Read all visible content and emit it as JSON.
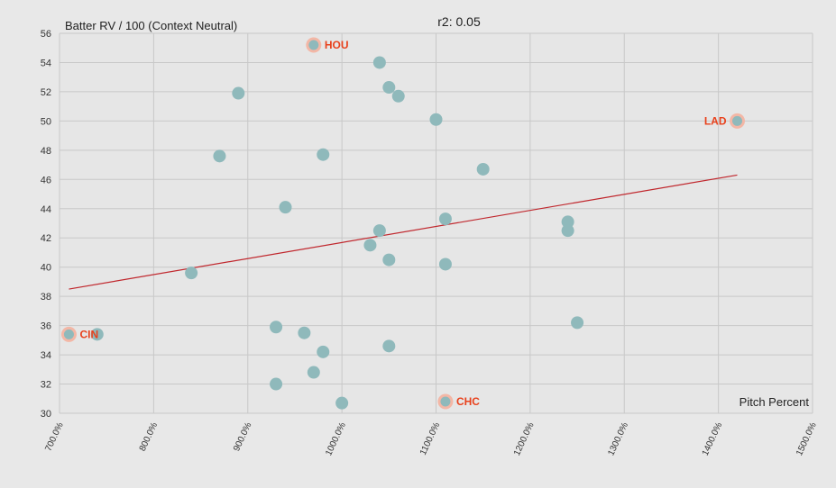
{
  "chart_data": {
    "type": "scatter",
    "title": "r2: 0.05",
    "ylabel": "Batter RV / 100 (Context Neutral)",
    "xlabel": "Pitch Percent",
    "xlim": [
      700,
      1500
    ],
    "ylim": [
      30,
      56
    ],
    "x_ticks": [
      700,
      800,
      900,
      1000,
      1100,
      1200,
      1300,
      1400,
      1500
    ],
    "x_tick_labels": [
      "700.0%",
      "800.0%",
      "900.0%",
      "1000.0%",
      "1100.0%",
      "1200.0%",
      "1300.0%",
      "1400.0%",
      "1500.0%"
    ],
    "y_ticks": [
      30,
      32,
      34,
      36,
      38,
      40,
      42,
      44,
      46,
      48,
      50,
      52,
      54,
      56
    ],
    "grid": true,
    "points": [
      {
        "x": 970,
        "y": 55.2,
        "label": "HOU"
      },
      {
        "x": 1040,
        "y": 54.0
      },
      {
        "x": 1050,
        "y": 52.3
      },
      {
        "x": 1060,
        "y": 51.7
      },
      {
        "x": 890,
        "y": 51.9
      },
      {
        "x": 1100,
        "y": 50.1
      },
      {
        "x": 1420,
        "y": 50.0,
        "label": "LAD"
      },
      {
        "x": 870,
        "y": 47.6
      },
      {
        "x": 980,
        "y": 47.7
      },
      {
        "x": 1150,
        "y": 46.7
      },
      {
        "x": 940,
        "y": 44.1
      },
      {
        "x": 1110,
        "y": 43.3
      },
      {
        "x": 1240,
        "y": 43.1
      },
      {
        "x": 1040,
        "y": 42.5
      },
      {
        "x": 1240,
        "y": 42.5
      },
      {
        "x": 1030,
        "y": 41.5
      },
      {
        "x": 1050,
        "y": 40.5
      },
      {
        "x": 1110,
        "y": 40.2
      },
      {
        "x": 840,
        "y": 39.6
      },
      {
        "x": 930,
        "y": 35.9
      },
      {
        "x": 960,
        "y": 35.5
      },
      {
        "x": 710,
        "y": 35.4,
        "label": "CIN"
      },
      {
        "x": 740,
        "y": 35.4
      },
      {
        "x": 1250,
        "y": 36.2
      },
      {
        "x": 980,
        "y": 34.2
      },
      {
        "x": 1050,
        "y": 34.6
      },
      {
        "x": 970,
        "y": 32.8
      },
      {
        "x": 930,
        "y": 32.0
      },
      {
        "x": 1000,
        "y": 30.7
      },
      {
        "x": 1110,
        "y": 30.8,
        "label": "CHC"
      }
    ],
    "trendline": {
      "x": [
        710,
        1420
      ],
      "y": [
        38.5,
        46.3
      ]
    },
    "colors": {
      "point": "#8fb9bb",
      "highlight_ring": "#f3b7a6",
      "highlight_label": "#e8411c",
      "trendline": "#c0272d",
      "grid": "#c8c8c8",
      "plot_bg": "#e6e6e6"
    }
  }
}
